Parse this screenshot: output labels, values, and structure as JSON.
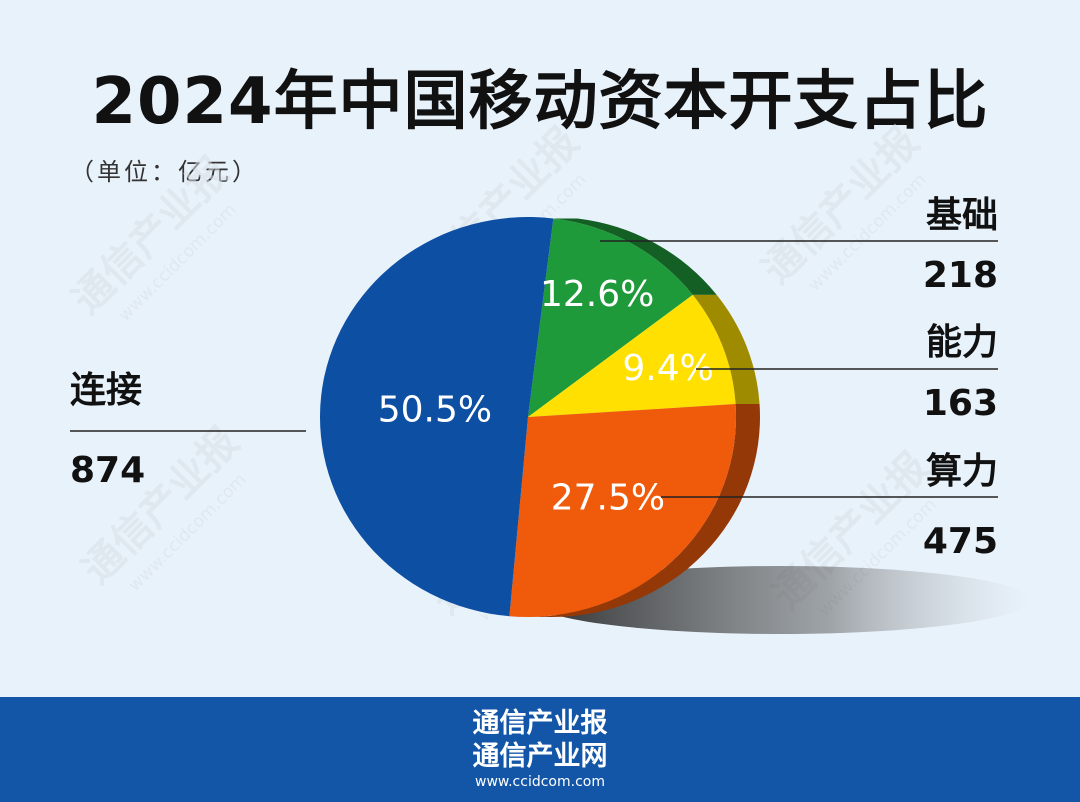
{
  "title": "2024年中国移动资本开支占比",
  "unit": "（单位：亿元）",
  "watermark_text": "通信产业报",
  "watermark_url": "www.ccidcom.com",
  "footer": {
    "line1": "通信产业报",
    "line2": "通信产业网",
    "line3": "www.ccidcom.com"
  },
  "chart_data": {
    "type": "pie",
    "title": "2024年中国移动资本开支占比",
    "unit": "（单位：亿元）",
    "slices": [
      {
        "label": "连接",
        "value": 874,
        "percent_label": "50.5%",
        "color": "#0d4fa3"
      },
      {
        "label": "基础",
        "value": 218,
        "percent_label": "12.6%",
        "color": "#1f9a3a"
      },
      {
        "label": "能力",
        "value": 163,
        "percent_label": "9.4%",
        "color": "#ffe000"
      },
      {
        "label": "算力",
        "value": 475,
        "percent_label": "27.5%",
        "color": "#f05a0b"
      }
    ]
  }
}
